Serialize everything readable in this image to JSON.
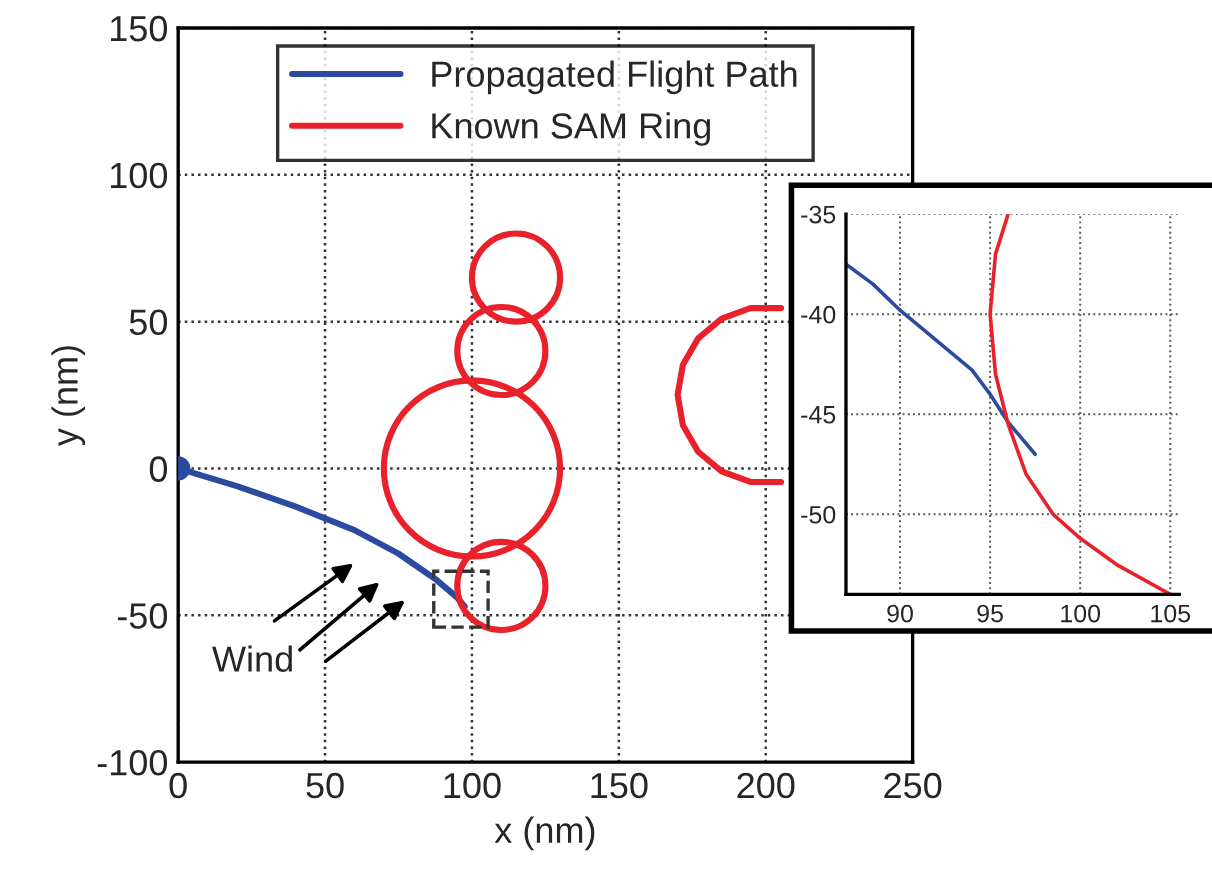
{
  "chart_data": [
    {
      "type": "line",
      "xlabel": "x (nm)",
      "ylabel": "y (nm)",
      "xlim": [
        0,
        250
      ],
      "ylim": [
        -100,
        150
      ],
      "xticks": [
        0,
        50,
        100,
        150,
        200,
        250
      ],
      "yticks": [
        -100,
        -50,
        0,
        50,
        100,
        150
      ],
      "grid": true,
      "legend": "top",
      "line_style": "solid",
      "annotations": [
        "Wind"
      ],
      "series": [
        {
          "name": "Propagated Flight Path",
          "color": "#2b4aa0",
          "x": [
            0,
            20,
            40,
            60,
            75,
            88,
            95,
            97.5
          ],
          "values": [
            0,
            -6,
            -13,
            -21,
            -29,
            -38,
            -44,
            -47
          ]
        },
        {
          "type": "scatter",
          "color": "#2b4aa0",
          "marker": "circle",
          "x": [
            0
          ],
          "values": [
            0
          ]
        },
        {
          "name": "Known SAM Ring",
          "color": "#e8212a",
          "x": [
            205.2,
            194.8,
            185,
            177,
            171.8,
            170,
            171.8,
            177,
            185,
            194.8,
            205.2
          ],
          "values": [
            54.6,
            54.6,
            51,
            44.3,
            35.3,
            25,
            14.7,
            5.7,
            -1,
            -4.6,
            -4.6
          ]
        }
      ]
    },
    {
      "type": "line",
      "xlim": [
        87,
        105.5
      ],
      "ylim": [
        -54,
        -35
      ],
      "xticks": [
        90,
        95,
        100,
        105
      ],
      "yticks": [
        -35,
        -40,
        -45,
        -50
      ],
      "grid": true,
      "line_style": "solid",
      "series": [
        {
          "color": "#2b4aa0",
          "x": [
            87,
            88.5,
            90,
            92,
            94,
            95,
            96,
            97.5
          ],
          "values": [
            -37.5,
            -38.5,
            -39.8,
            -41.3,
            -42.8,
            -44,
            -45.4,
            -47
          ]
        },
        {
          "color": "#e8212a",
          "x": [
            96,
            95.3,
            95,
            95.3,
            96,
            97,
            98.5,
            100,
            102,
            105
          ],
          "values": [
            -35,
            -37,
            -40,
            -43,
            -45.5,
            -48,
            -50,
            -51.2,
            -52.5,
            -54
          ]
        }
      ]
    }
  ]
}
